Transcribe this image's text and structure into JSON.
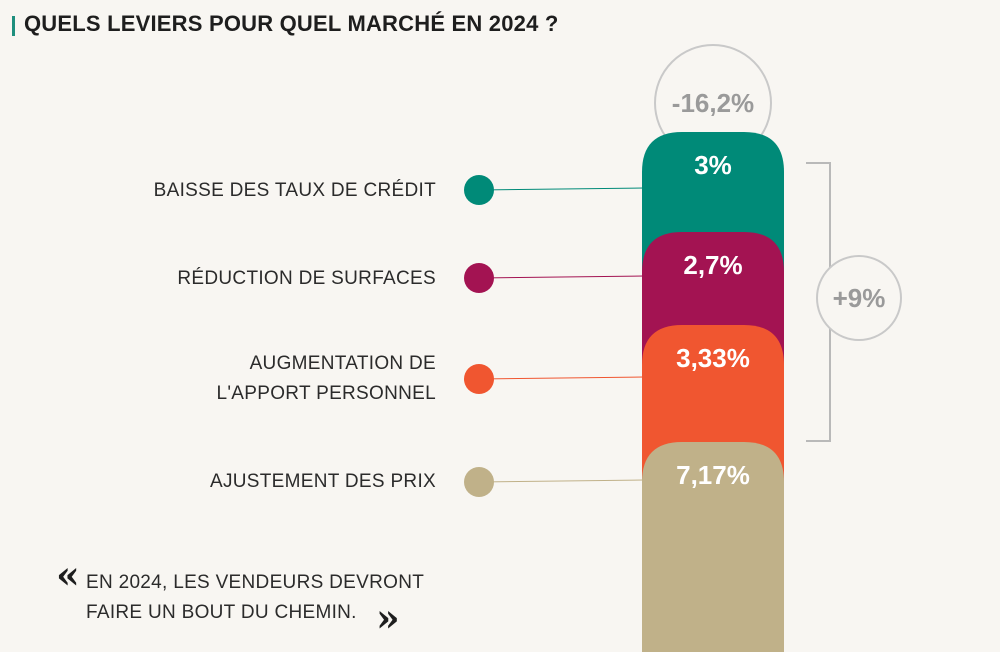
{
  "title": "QUELS LEVIERS POUR QUEL MARCHÉ EN 2024 ?",
  "chart_data": {
    "type": "bar",
    "stacked": true,
    "categories": [
      "BAISSE DES TAUX DE CRÉDIT",
      "RÉDUCTION DE SURFACES",
      "AUGMENTATION DE\nL'APPORT PERSONNEL",
      "AJUSTEMENT DES PRIX"
    ],
    "series": [
      {
        "category": "BAISSE DES TAUX DE CRÉDIT",
        "value": 3,
        "label": "3%",
        "color": "#008a78"
      },
      {
        "category": "RÉDUCTION DE SURFACES",
        "value": 2.7,
        "label": "2,7%",
        "color": "#a31352"
      },
      {
        "category": "AUGMENTATION DE\nL'APPORT PERSONNEL",
        "value": 3.33,
        "label": "3,33%",
        "color": "#f05630"
      },
      {
        "category": "AJUSTEMENT DES PRIX",
        "value": 7.17,
        "label": "7,17%",
        "color": "#c0b189"
      }
    ],
    "total_label": "-16,2%",
    "bracket_label": "+9%",
    "bracket_covers": [
      "BAISSE DES TAUX DE CRÉDIT",
      "RÉDUCTION DE SURFACES",
      "AUGMENTATION DE\nL'APPORT PERSONNEL"
    ]
  },
  "quote": {
    "line1": "EN 2024, LES VENDEURS DEVRONT",
    "line2": "FAIRE UN BOUT DU CHEMIN.",
    "open_mark": "«",
    "close_mark": "»"
  }
}
